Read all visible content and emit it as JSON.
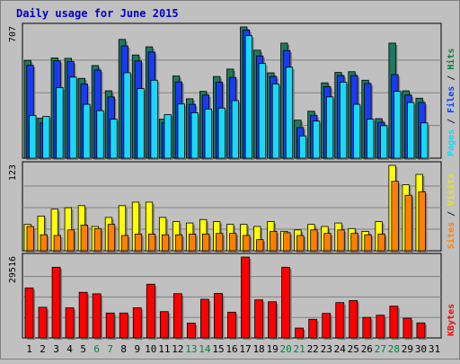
{
  "chart_data": {
    "type": "bar",
    "title": "Daily usage for June 2015",
    "categories": [
      "1",
      "2",
      "3",
      "4",
      "5",
      "6",
      "7",
      "8",
      "9",
      "10",
      "11",
      "12",
      "13",
      "14",
      "15",
      "16",
      "17",
      "18",
      "19",
      "20",
      "21",
      "22",
      "23",
      "24",
      "25",
      "26",
      "27",
      "28",
      "29",
      "30",
      "31"
    ],
    "weekend_days": [
      "6",
      "7",
      "13",
      "14",
      "20",
      "21",
      "27",
      "28"
    ],
    "panels": [
      {
        "id": "pages-files-hits",
        "ymax": 707,
        "ymax_label": "707",
        "ylabel_parts": [
          {
            "text": "Pages",
            "color": "#00e0ff"
          },
          {
            "text": " / ",
            "color": "#202020"
          },
          {
            "text": "Files",
            "color": "#0040ff"
          },
          {
            "text": " / ",
            "color": "#202020"
          },
          {
            "text": "Hits",
            "color": "#008040"
          }
        ],
        "series": [
          {
            "key": "hits",
            "color": "#1e7a5e",
            "values": [
              527,
              215,
              540,
              538,
              430,
              499,
              363,
              640,
              556,
              600,
              210,
              443,
              320,
              360,
              440,
              480,
              707,
              582,
              460,
              620,
              205,
              253,
              406,
              462,
              466,
              420,
              213,
              620,
              363,
              323,
              0
            ]
          },
          {
            "key": "files",
            "color": "#1a3cf0",
            "values": [
              500,
              190,
              524,
              520,
              400,
              475,
              330,
              605,
              524,
              572,
              190,
              411,
              290,
              340,
              410,
              435,
              690,
              551,
              440,
              580,
              165,
              230,
              385,
              445,
              445,
              402,
              193,
              450,
              340,
              300,
              0
            ]
          },
          {
            "key": "pages",
            "color": "#1ad8f8",
            "values": [
              230,
              225,
              380,
              437,
              290,
              256,
              210,
              460,
              375,
              420,
              235,
              292,
              245,
              265,
              270,
              310,
              660,
              510,
              400,
              490,
              120,
              200,
              330,
              410,
              290,
              210,
              175,
              360,
              300,
              190,
              0
            ]
          }
        ]
      },
      {
        "id": "visits-sites",
        "ymax": 123,
        "ymax_label": "123",
        "ylabel_parts": [
          {
            "text": "Sites",
            "color": "#ff8000"
          },
          {
            "text": " / ",
            "color": "#202020"
          },
          {
            "text": "Visits",
            "color": "#e8e800"
          }
        ],
        "series": [
          {
            "key": "visits",
            "color": "#ffff00",
            "values": [
              38,
              50,
              60,
              62,
              65,
              35,
              48,
              65,
              70,
              70,
              48,
              42,
              40,
              45,
              42,
              38,
              38,
              35,
              42,
              28,
              30,
              38,
              35,
              40,
              32,
              28,
              42,
              123,
              95,
              110,
              0
            ]
          },
          {
            "key": "sites",
            "color": "#ff8000",
            "values": [
              35,
              23,
              22,
              30,
              37,
              32,
              38,
              22,
              24,
              24,
              23,
              23,
              24,
              24,
              25,
              25,
              22,
              16,
              28,
              26,
              22,
              30,
              25,
              30,
              25,
              23,
              24,
              100,
              80,
              85,
              0
            ]
          }
        ]
      },
      {
        "id": "kbytes",
        "ymax": 29516,
        "ymax_label": "29516",
        "ylabel_parts": [
          {
            "text": "KBytes",
            "color": "#ff0000"
          }
        ],
        "series": [
          {
            "key": "kbytes",
            "color": "#ff0000",
            "values": [
              18250,
              11200,
              25800,
              11000,
              16650,
              16100,
              9100,
              9100,
              11000,
              19600,
              9600,
              16150,
              5400,
              14100,
              16250,
              9400,
              29516,
              13900,
              13200,
              25800,
              3600,
              6800,
              8950,
              12900,
              13650,
              7500,
              8300,
              11600,
              7200,
              5500,
              0
            ]
          }
        ]
      }
    ]
  }
}
